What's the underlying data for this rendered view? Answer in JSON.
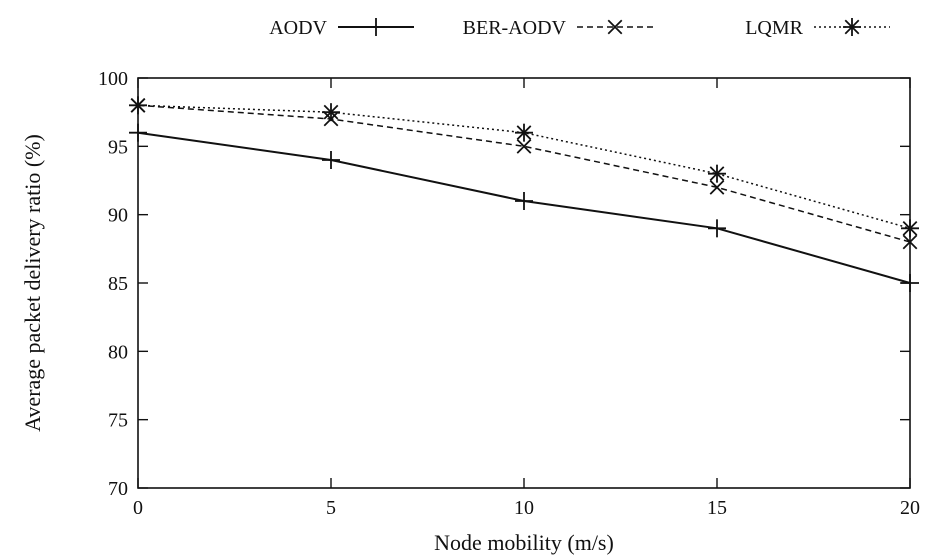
{
  "chart_data": {
    "type": "line",
    "xlabel": "Node mobility (m/s)",
    "ylabel": "Average packet delivery ratio (%)",
    "x": [
      0,
      5,
      10,
      15,
      20
    ],
    "xlim": [
      0,
      20
    ],
    "ylim": [
      70,
      100
    ],
    "xticks": [
      "0",
      "5",
      "10",
      "15",
      "20"
    ],
    "yticks": [
      "70",
      "75",
      "80",
      "85",
      "90",
      "95",
      "100"
    ],
    "grid": false,
    "legend_position": "top",
    "series": [
      {
        "name": "AODV",
        "marker": "plus",
        "line": "solid",
        "values": [
          96,
          94,
          91,
          89,
          85
        ]
      },
      {
        "name": "BER-AODV",
        "marker": "cross",
        "line": "dashed",
        "values": [
          98,
          97,
          95,
          92,
          88
        ]
      },
      {
        "name": "LQMR",
        "marker": "star",
        "line": "dotted",
        "values": [
          98,
          97.5,
          96,
          93,
          89
        ]
      }
    ],
    "colors": {
      "ink": "#111111",
      "background": "#ffffff"
    }
  }
}
